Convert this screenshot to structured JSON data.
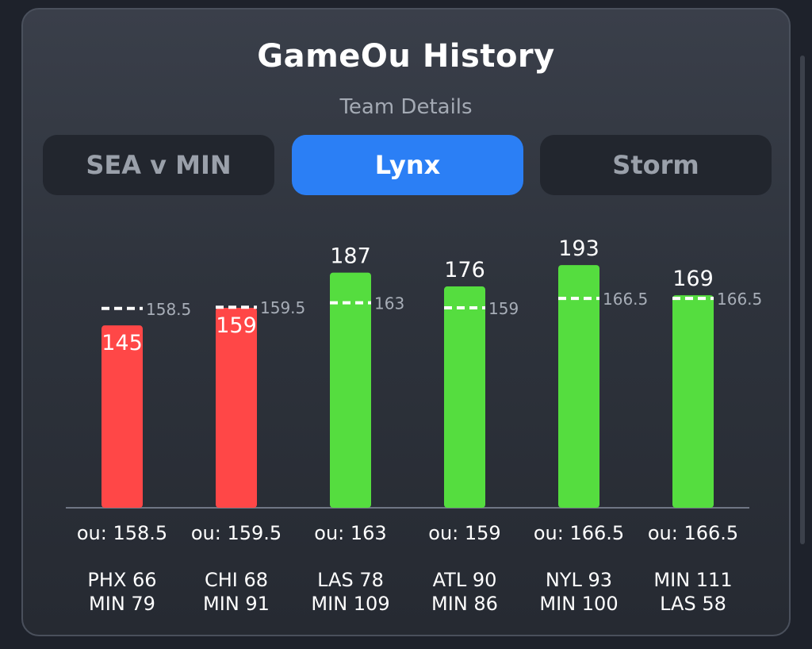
{
  "header": {
    "title": "GameOu History",
    "subtitle": "Team Details"
  },
  "tabs": [
    {
      "label": "SEA v MIN",
      "active": false
    },
    {
      "label": "Lynx",
      "active": true
    },
    {
      "label": "Storm",
      "active": false
    }
  ],
  "colors": {
    "under": "#ff4747",
    "over": "#55dd3f",
    "active_tab": "#2b7ff5"
  },
  "chart_data": {
    "type": "bar",
    "ylim": [
      0,
      200
    ],
    "games": [
      {
        "total": 145,
        "line": 158.5,
        "line_label": "158.5",
        "ou_label": "ou: 158.5",
        "score": [
          "PHX 66",
          "MIN 79"
        ],
        "result": "under"
      },
      {
        "total": 159,
        "line": 159.5,
        "line_label": "159.5",
        "ou_label": "ou: 159.5",
        "score": [
          "CHI 68",
          "MIN 91"
        ],
        "result": "under"
      },
      {
        "total": 187,
        "line": 163,
        "line_label": "163",
        "ou_label": "ou: 163",
        "score": [
          "LAS 78",
          "MIN 109"
        ],
        "result": "over"
      },
      {
        "total": 176,
        "line": 159,
        "line_label": "159",
        "ou_label": "ou: 159",
        "score": [
          "ATL 90",
          "MIN 86"
        ],
        "result": "over"
      },
      {
        "total": 193,
        "line": 166.5,
        "line_label": "166.5",
        "ou_label": "ou: 166.5",
        "score": [
          "NYL 93",
          "MIN 100"
        ],
        "result": "over"
      },
      {
        "total": 169,
        "line": 166.5,
        "line_label": "166.5",
        "ou_label": "ou: 166.5",
        "score": [
          "MIN 111",
          "LAS 58"
        ],
        "result": "over"
      }
    ]
  }
}
